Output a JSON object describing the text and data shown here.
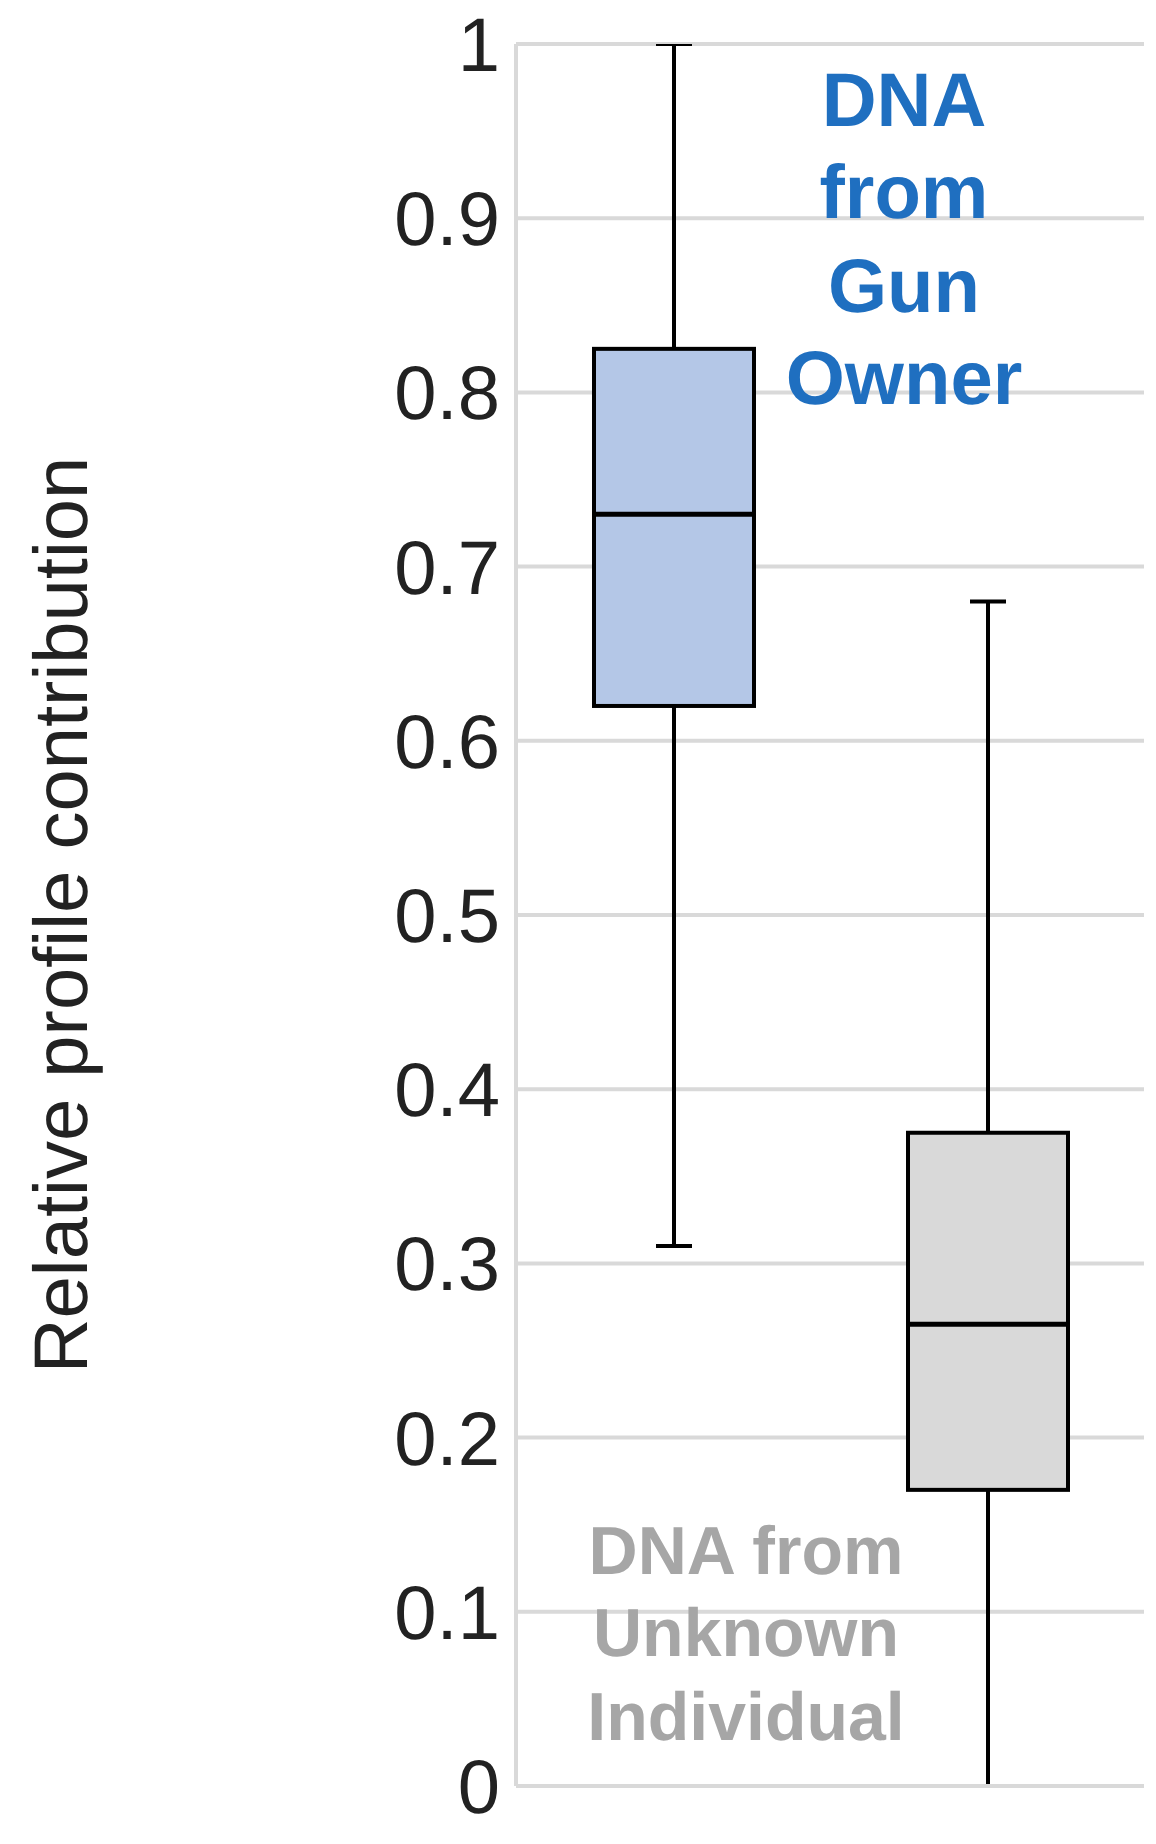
{
  "chart_data": {
    "type": "box",
    "ylabel": "Relative profile contribution",
    "categories": [
      null,
      null
    ],
    "boxes": [
      {
        "low": 0.31,
        "q1": 0.62,
        "median": 0.73,
        "q3": 0.825,
        "high": 1.0
      },
      {
        "low": 0,
        "q1": 0.17,
        "median": 0.265,
        "q3": 0.375,
        "high": 0.68
      }
    ],
    "colors": [
      "#b4c7e7",
      "#d9d9d9"
    ],
    "ylim": [
      0,
      1
    ],
    "yticks": [
      0,
      {
        "value": 0.1,
        "label": "0.1"
      },
      {
        "value": 0.2,
        "label": "0.2"
      },
      {
        "value": 0.3,
        "label": "0.3"
      },
      {
        "value": 0.4,
        "label": "0.4"
      },
      {
        "value": 0.5,
        "label": "0.5"
      },
      {
        "value": 0.6,
        "label": "0.6"
      },
      {
        "value": 0.7,
        "label": "0.7"
      },
      {
        "value": 0.8,
        "label": "0.8"
      },
      {
        "value": 0.9,
        "label": "0.9"
      },
      1
    ],
    "grid": "y",
    "annotations": [
      "DNA from Gun Owner",
      "DNA from Unknown Individual"
    ]
  }
}
